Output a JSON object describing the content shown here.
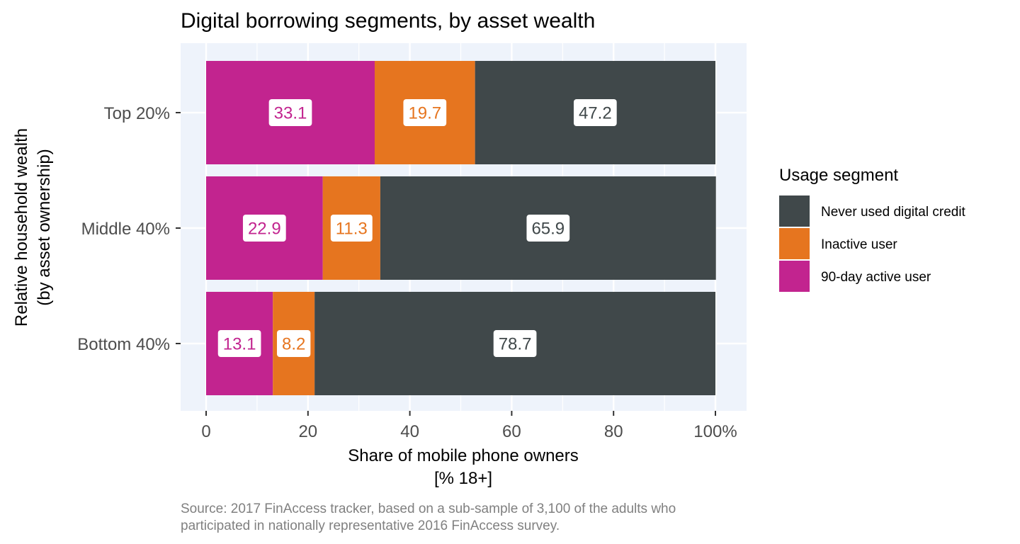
{
  "chart_data": {
    "type": "bar",
    "orientation": "horizontal",
    "stacked": true,
    "title": "Digital borrowing segments, by asset wealth",
    "xlabel_lines": [
      "Share of mobile phone owners",
      "[% 18+]"
    ],
    "ylabel_lines": [
      "Relative household wealth",
      "(by asset ownership)"
    ],
    "categories": [
      "Top 20%",
      "Middle 40%",
      "Bottom 40%"
    ],
    "xlim": [
      0,
      100
    ],
    "xticks": [
      0,
      20,
      40,
      60,
      80,
      100
    ],
    "xtick_labels": [
      "0",
      "20",
      "40",
      "60",
      "80",
      "100%"
    ],
    "grid": true,
    "legend": {
      "title": "Usage segment",
      "position": "right",
      "order": [
        "Never used digital credit",
        "Inactive user",
        "90-day active user"
      ]
    },
    "series": [
      {
        "name": "90-day active user",
        "color": "#C2248F",
        "values": [
          33.1,
          22.9,
          13.1
        ]
      },
      {
        "name": "Inactive user",
        "color": "#E6751F",
        "values": [
          19.7,
          11.3,
          8.2
        ]
      },
      {
        "name": "Never used digital credit",
        "color": "#40484A",
        "values": [
          47.2,
          65.9,
          78.7
        ]
      }
    ],
    "value_labels": [
      [
        "33.1",
        "22.9",
        "13.1"
      ],
      [
        "19.7",
        "11.3",
        "8.2"
      ],
      [
        "47.2",
        "65.9",
        "78.7"
      ]
    ],
    "caption_lines": [
      "Source: 2017 FinAccess tracker, based on a sub-sample of 3,100 of the adults who",
      "participated in nationally representative 2016 FinAccess survey."
    ],
    "panel_background": "#EEF3FB",
    "grid_color": "#FFFFFF"
  }
}
